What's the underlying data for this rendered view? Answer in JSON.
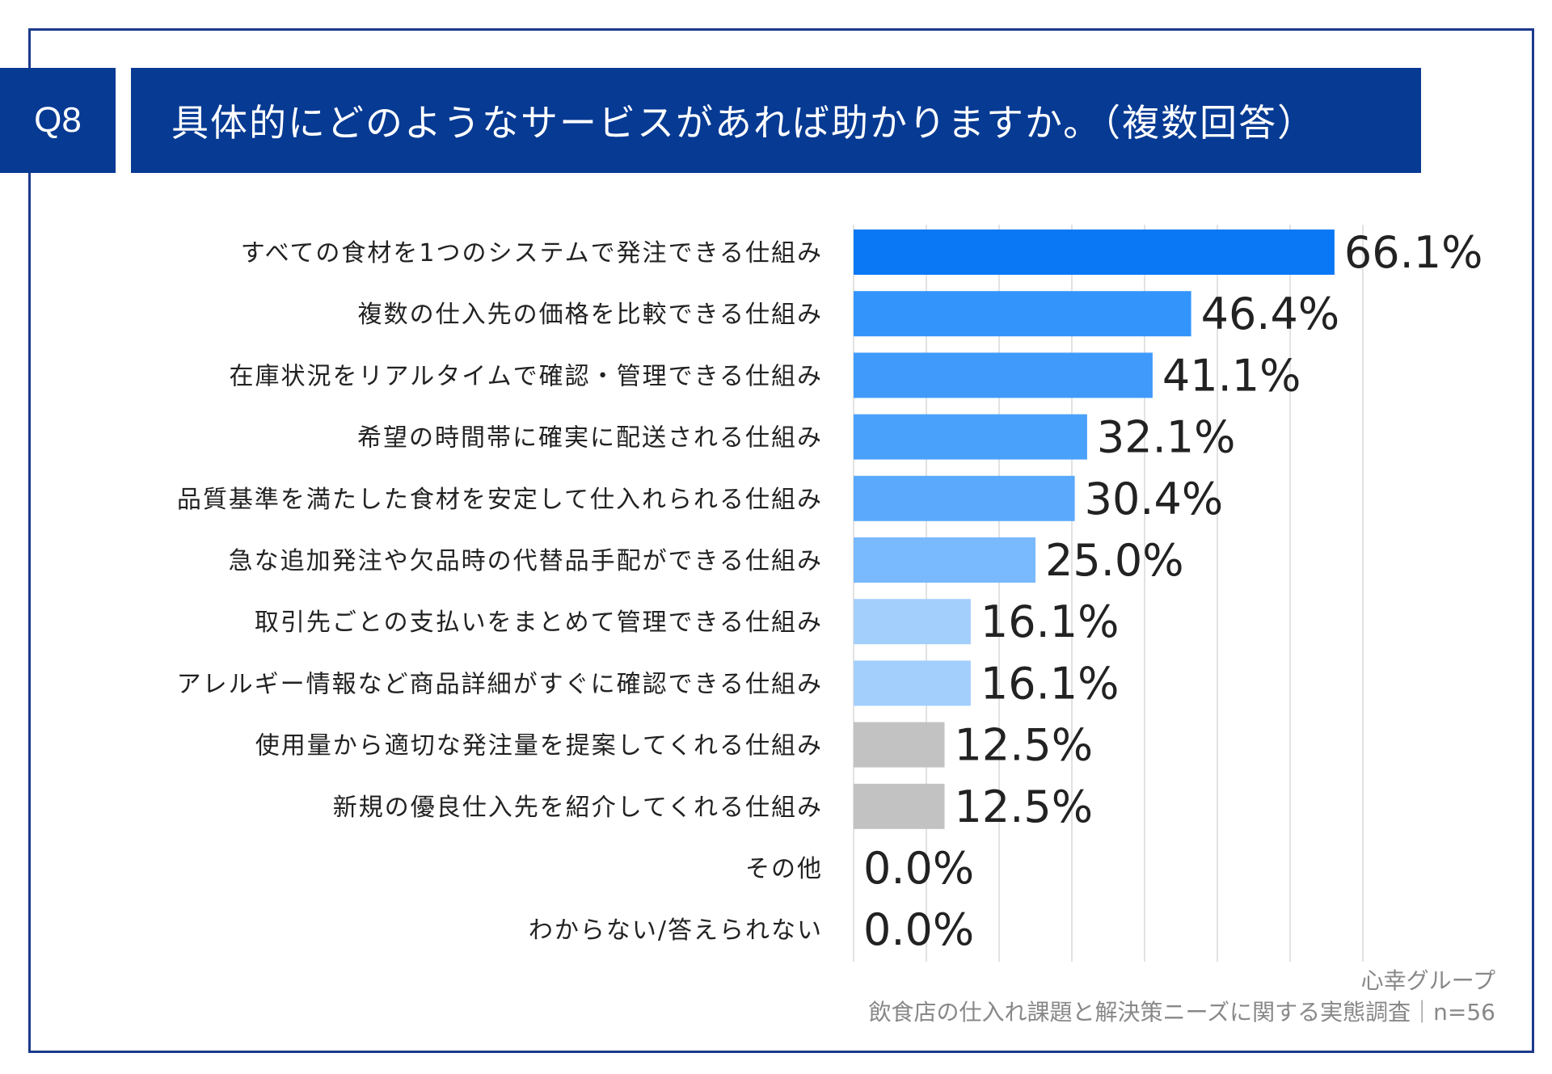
{
  "header": {
    "question_no": "Q8",
    "title": "具体的にどのようなサービスがあれば助かりますか。（複数回答）"
  },
  "footer": {
    "company": "心幸グループ",
    "survey": "飲食店の仕入れ課題と解決策ニーズに関する実態調査｜n=56"
  },
  "chart_data": {
    "type": "bar",
    "orientation": "horizontal",
    "title": "具体的にどのようなサービスがあれば助かりますか。（複数回答）",
    "categories": [
      "すべての食材を1つのシステムで発注できる仕組み",
      "複数の仕入先の価格を比較できる仕組み",
      "在庫状況をリアルタイムで確認・管理できる仕組み",
      "希望の時間帯に確実に配送される仕組み",
      "品質基準を満たした食材を安定して仕入れられる仕組み",
      "急な追加発注や欠品時の代替品手配ができる仕組み",
      "取引先ごとの支払いをまとめて管理できる仕組み",
      "アレルギー情報など商品詳細がすぐに確認できる仕組み",
      "使用量から適切な発注量を提案してくれる仕組み",
      "新規の優良仕入先を紹介してくれる仕組み",
      "その他",
      "わからない/答えられない"
    ],
    "values": [
      66.1,
      46.4,
      41.1,
      32.1,
      30.4,
      25.0,
      16.1,
      16.1,
      12.5,
      12.5,
      0.0,
      0.0
    ],
    "value_labels": [
      "66.1%",
      "46.4%",
      "41.1%",
      "32.1%",
      "30.4%",
      "25.0%",
      "16.1%",
      "16.1%",
      "12.5%",
      "12.5%",
      "0.0%",
      "0.0%"
    ],
    "bar_colors": [
      "#0a78f5",
      "#3395fc",
      "#3f9afc",
      "#4aa1fc",
      "#5aa9fc",
      "#79b9fd",
      "#a3cffd",
      "#a3cffd",
      "#c2c2c2",
      "#c2c2c2",
      "#c2c2c2",
      "#c2c2c2"
    ],
    "xlim": [
      0,
      100
    ],
    "grid": true,
    "xlabel": "",
    "ylabel": ""
  }
}
